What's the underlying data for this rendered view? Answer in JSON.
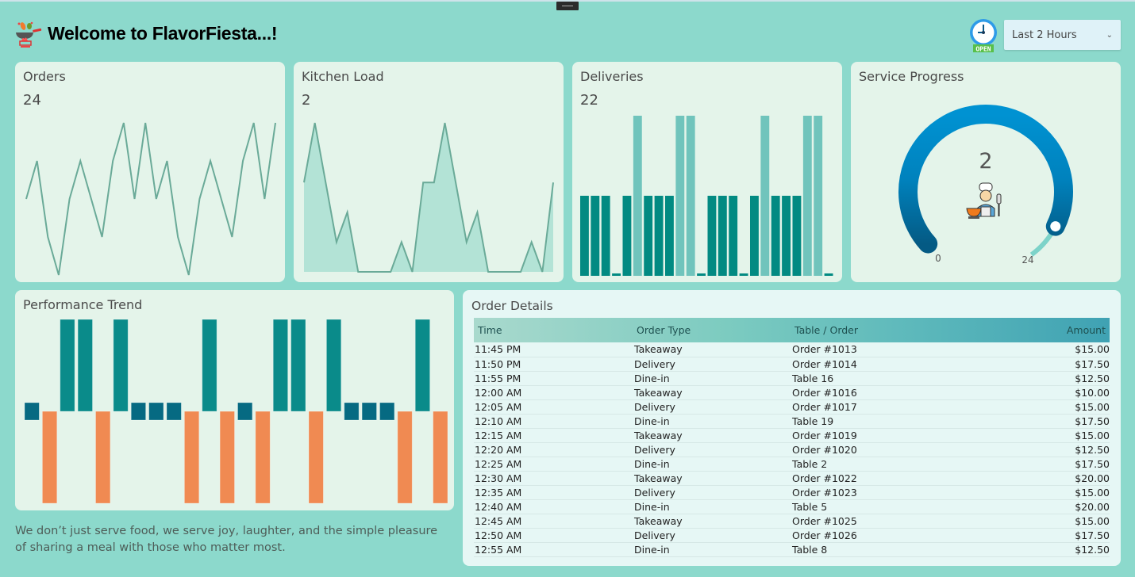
{
  "header": {
    "title": "Welcome to FlavorFiesta...!",
    "logo_icon": "cooking-pan-icon",
    "status_icon": "clock-open-icon",
    "status_badge": "OPEN",
    "time_range": {
      "selected": "Last 2 Hours"
    }
  },
  "colors": {
    "background": "#8cd9cc",
    "card": "#e4f4ea",
    "line": "#6aaa98",
    "area_fill": "#b3e3d6",
    "bar_primary": "#028a82",
    "bar_secondary": "#70c4bc",
    "win": "#0a8b8a",
    "loss": "#f08a52",
    "neutral": "#066a82",
    "gauge": "#0090d0"
  },
  "orders": {
    "title": "Orders",
    "value": "24"
  },
  "kitchen": {
    "title": "Kitchen Load",
    "value": "2"
  },
  "deliveries": {
    "title": "Deliveries",
    "value": "22"
  },
  "service": {
    "title": "Service Progress",
    "value": "2",
    "min_label": "0",
    "max_label": "24",
    "fill_fraction": 0.9
  },
  "performance": {
    "title": "Performance Trend"
  },
  "quote": "We don’t just serve food, we serve joy, laughter, and the simple pleasure of sharing a meal with those who matter most.",
  "chart_data": [
    {
      "type": "line",
      "name": "orders",
      "values": [
        2,
        3,
        1,
        0,
        2,
        3,
        2,
        1,
        3,
        4,
        2,
        4,
        2,
        3,
        1,
        0,
        2,
        3,
        2,
        1,
        3,
        4,
        2,
        4
      ],
      "ylim": [
        0,
        4
      ]
    },
    {
      "type": "area",
      "name": "kitchen",
      "values": [
        3,
        5,
        3,
        1,
        2,
        0,
        0,
        0,
        0,
        1,
        0,
        3,
        3,
        5,
        3,
        1,
        2,
        0,
        0,
        0,
        0,
        1,
        0,
        3
      ],
      "ylim": [
        0,
        5
      ]
    },
    {
      "type": "bar",
      "name": "deliveries",
      "values": [
        1,
        1,
        1,
        0,
        1,
        2,
        1,
        1,
        1,
        2,
        2,
        0,
        1,
        1,
        1,
        0,
        1,
        2,
        1,
        1,
        1,
        2,
        2,
        0
      ],
      "ylim": [
        0,
        2
      ]
    },
    {
      "type": "bar",
      "name": "performance-win-loss",
      "values": [
        0,
        -1,
        1,
        1,
        -1,
        1,
        0,
        0,
        0,
        -1,
        1,
        -1,
        0,
        -1,
        1,
        1,
        -1,
        1,
        0,
        0,
        0,
        -1,
        1,
        -1
      ],
      "ylim": [
        -1,
        1
      ]
    }
  ],
  "order_details": {
    "title": "Order Details",
    "columns": [
      "Time",
      "Order Type",
      "Table / Order",
      "Amount"
    ],
    "rows": [
      [
        "11:45 PM",
        "Takeaway",
        "Order #1013",
        "$15.00"
      ],
      [
        "11:50 PM",
        "Delivery",
        "Order #1014",
        "$17.50"
      ],
      [
        "11:55 PM",
        "Dine-in",
        "Table 16",
        "$12.50"
      ],
      [
        "12:00 AM",
        "Takeaway",
        "Order #1016",
        "$10.00"
      ],
      [
        "12:05 AM",
        "Delivery",
        "Order #1017",
        "$15.00"
      ],
      [
        "12:10 AM",
        "Dine-in",
        "Table 19",
        "$17.50"
      ],
      [
        "12:15 AM",
        "Takeaway",
        "Order #1019",
        "$15.00"
      ],
      [
        "12:20 AM",
        "Delivery",
        "Order #1020",
        "$12.50"
      ],
      [
        "12:25 AM",
        "Dine-in",
        "Table 2",
        "$17.50"
      ],
      [
        "12:30 AM",
        "Takeaway",
        "Order #1022",
        "$20.00"
      ],
      [
        "12:35 AM",
        "Delivery",
        "Order #1023",
        "$15.00"
      ],
      [
        "12:40 AM",
        "Dine-in",
        "Table 5",
        "$20.00"
      ],
      [
        "12:45 AM",
        "Takeaway",
        "Order #1025",
        "$15.00"
      ],
      [
        "12:50 AM",
        "Delivery",
        "Order #1026",
        "$17.50"
      ],
      [
        "12:55 AM",
        "Dine-in",
        "Table 8",
        "$12.50"
      ]
    ]
  }
}
